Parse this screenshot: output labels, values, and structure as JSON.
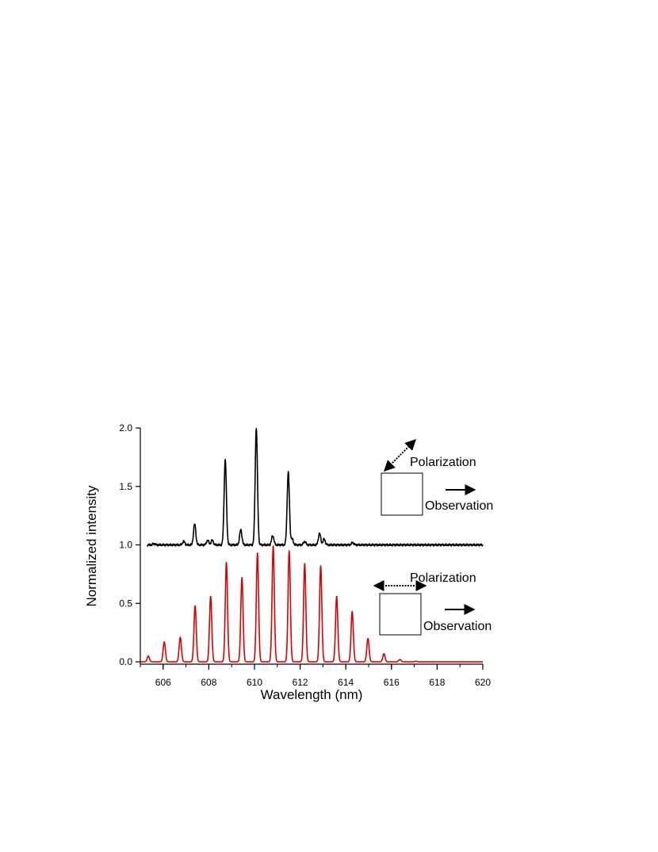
{
  "chart_data": {
    "type": "line",
    "title": "",
    "xlabel": "Wavelength (nm)",
    "ylabel": "Normalized intensity",
    "xlim": [
      605,
      620
    ],
    "ylim": [
      -0.02,
      2.0
    ],
    "x_ticks": [
      {
        "value": 606,
        "label": "606"
      },
      {
        "value": 608,
        "label": "608"
      },
      {
        "value": 610,
        "label": "610"
      },
      {
        "value": 612,
        "label": "612"
      },
      {
        "value": 614,
        "label": "614"
      },
      {
        "value": 616,
        "label": "616"
      },
      {
        "value": 618,
        "label": "618"
      },
      {
        "value": 620,
        "label": "620"
      }
    ],
    "y_ticks": [
      {
        "value": 0.0,
        "label": "0.0"
      },
      {
        "value": 0.5,
        "label": "0.5"
      },
      {
        "value": 1.0,
        "label": "1.0"
      },
      {
        "value": 1.5,
        "label": "1.5"
      },
      {
        "value": 2.0,
        "label": "2.0"
      }
    ],
    "grid": false,
    "legend": "none",
    "series": [
      {
        "color": "#000000",
        "x_range": [
          605.3,
          620
        ],
        "baseline": 1.0,
        "peaks": [
          {
            "x": 605.6,
            "y": 1.01
          },
          {
            "x": 606.9,
            "y": 1.03
          },
          {
            "x": 607.38,
            "y": 1.18
          },
          {
            "x": 607.95,
            "y": 1.04
          },
          {
            "x": 608.15,
            "y": 1.04
          },
          {
            "x": 608.72,
            "y": 1.73
          },
          {
            "x": 609.4,
            "y": 1.13
          },
          {
            "x": 610.08,
            "y": 2.0
          },
          {
            "x": 610.8,
            "y": 1.08
          },
          {
            "x": 611.48,
            "y": 1.62
          },
          {
            "x": 611.65,
            "y": 1.05
          },
          {
            "x": 612.2,
            "y": 1.03
          },
          {
            "x": 612.85,
            "y": 1.1
          },
          {
            "x": 613.05,
            "y": 1.05
          },
          {
            "x": 614.3,
            "y": 1.02
          }
        ]
      },
      {
        "color": "#dd0000",
        "x_range": [
          605.0,
          620
        ],
        "baseline": 0.0,
        "peaks": [
          {
            "x": 605.35,
            "y": 0.05
          },
          {
            "x": 606.05,
            "y": 0.17
          },
          {
            "x": 606.75,
            "y": 0.21
          },
          {
            "x": 607.4,
            "y": 0.48
          },
          {
            "x": 608.08,
            "y": 0.56
          },
          {
            "x": 608.77,
            "y": 0.85
          },
          {
            "x": 609.45,
            "y": 0.72
          },
          {
            "x": 610.13,
            "y": 0.93
          },
          {
            "x": 610.82,
            "y": 0.99
          },
          {
            "x": 611.52,
            "y": 0.95
          },
          {
            "x": 612.2,
            "y": 0.84
          },
          {
            "x": 612.9,
            "y": 0.82
          },
          {
            "x": 613.6,
            "y": 0.56
          },
          {
            "x": 614.28,
            "y": 0.43
          },
          {
            "x": 614.97,
            "y": 0.2
          },
          {
            "x": 615.67,
            "y": 0.07
          },
          {
            "x": 616.37,
            "y": 0.02
          },
          {
            "x": 617.07,
            "y": 0.005
          }
        ]
      }
    ],
    "annotations": [
      {
        "polarization_label": "Polarization",
        "observation_label": "Observation",
        "polarization_arrow": "diagonal"
      },
      {
        "polarization_label": "Polarization",
        "observation_label": "Observation",
        "polarization_arrow": "horizontal"
      }
    ]
  }
}
